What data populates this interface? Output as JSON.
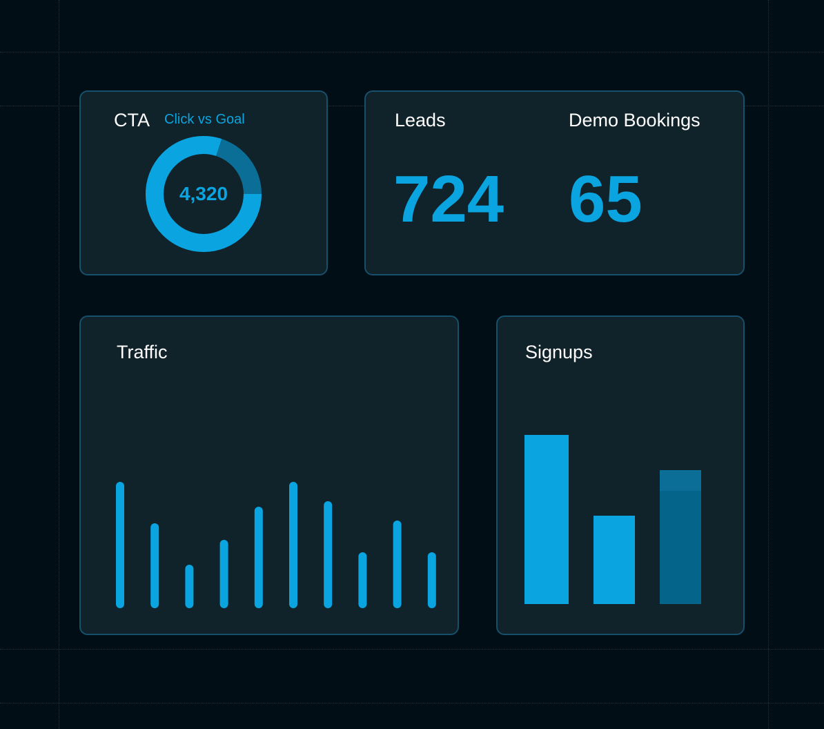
{
  "colors": {
    "accent": "#0aa5e0",
    "accent_dim": "#0a6e96",
    "accent_dark": "#05648a"
  },
  "cta_card": {
    "title": "CTA",
    "subtitle": "Click vs Goal",
    "center_value": "4,320",
    "progress_fraction": 0.8
  },
  "leads_card": {
    "leads_label": "Leads",
    "leads_value": "724",
    "demo_label": "Demo Bookings",
    "demo_value": "65"
  },
  "traffic_card": {
    "title": "Traffic"
  },
  "signups_card": {
    "title": "Signups"
  },
  "chart_data": [
    {
      "type": "bar",
      "chart": "traffic",
      "values": [
        177,
        117,
        57,
        93,
        141,
        177,
        149,
        75,
        121,
        75
      ],
      "ylim": [
        0,
        177
      ]
    },
    {
      "type": "bar",
      "chart": "signups",
      "series": [
        {
          "values": [
            245,
            128,
            164
          ]
        },
        {
          "values": [
            0,
            0,
            30
          ]
        }
      ],
      "ylim": [
        0,
        245
      ]
    }
  ]
}
